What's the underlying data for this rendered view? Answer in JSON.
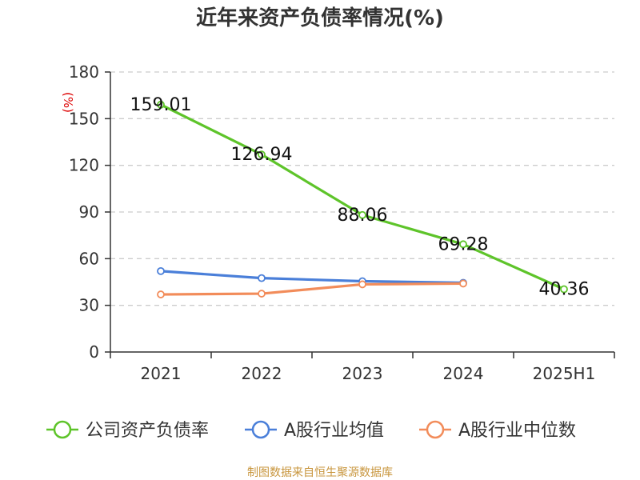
{
  "chart_data": {
    "type": "line",
    "title": "近年来资产负债率情况(%)",
    "ylabel": "(%)",
    "categories": [
      "2021",
      "2022",
      "2023",
      "2024",
      "2025H1"
    ],
    "ylim": [
      0,
      180
    ],
    "yticks": [
      0,
      30,
      60,
      90,
      120,
      150,
      180
    ],
    "grid": true,
    "legend_position": "bottom",
    "series": [
      {
        "name": "公司资产负债率",
        "color": "#5ec42a",
        "values": [
          159.01,
          126.94,
          88.06,
          69.28,
          40.36
        ],
        "labels": [
          "159.01",
          "126.94",
          "88.06",
          "69.28",
          "40.36"
        ]
      },
      {
        "name": "A股行业均值",
        "color": "#4a7fd9",
        "values": [
          52.0,
          47.5,
          45.5,
          44.5,
          null
        ]
      },
      {
        "name": "A股行业中位数",
        "color": "#f28c5a",
        "values": [
          37.0,
          37.5,
          43.5,
          44.0,
          null
        ]
      }
    ]
  },
  "footer": {
    "source": "制图数据来自恒生聚源数据库"
  }
}
